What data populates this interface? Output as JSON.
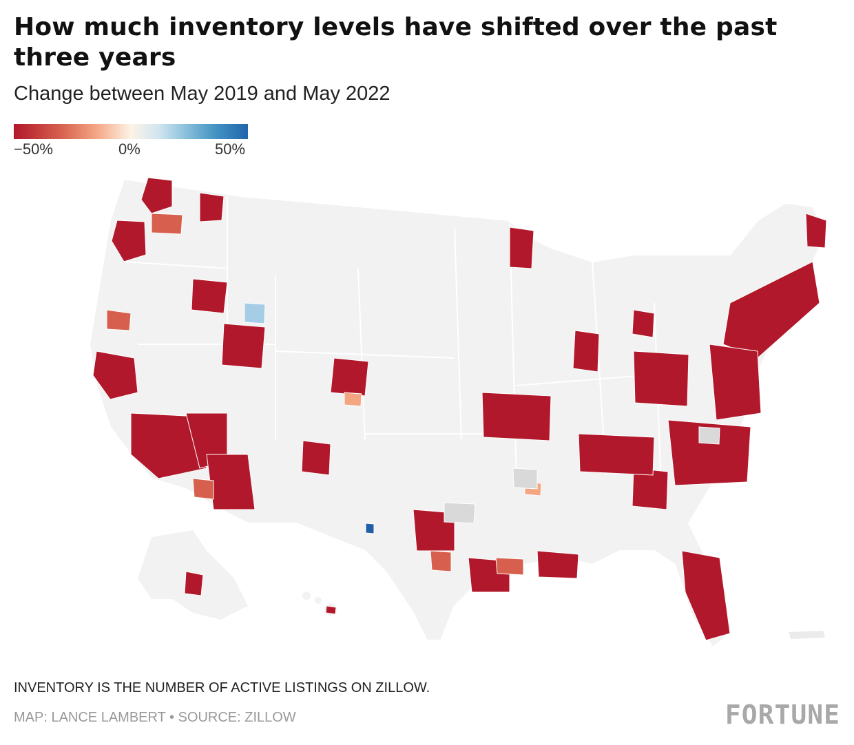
{
  "header": {
    "title": "How much inventory levels have shifted over the past three years",
    "subtitle": "Change between May 2019 and May 2022"
  },
  "legend": {
    "min_label": "−50%",
    "mid_label": "0%",
    "max_label": "50%",
    "scale_colors": [
      "#b2182b",
      "#d6604d",
      "#f4a582",
      "#fdf3e6",
      "#92c5de",
      "#2166ac"
    ]
  },
  "map": {
    "region": "United States metro areas",
    "colors": {
      "land": "#f2f2f2",
      "border": "#ffffff",
      "strong_decline": "#b2182b",
      "moderate_decline": "#d6604d",
      "slight_decline": "#f4a582",
      "no_data": "#d9d9d9",
      "increase_light": "#a6cde6",
      "increase_strong": "#1f5fa8"
    }
  },
  "footer": {
    "note": "INVENTORY IS THE NUMBER OF ACTIVE LISTINGS ON ZILLOW.",
    "credit": "MAP: LANCE LAMBERT • SOURCE: ZILLOW",
    "brand": "FORTUNE"
  }
}
